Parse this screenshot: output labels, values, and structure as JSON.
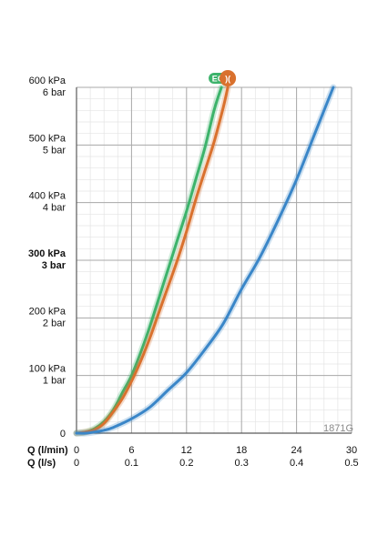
{
  "chart_data": {
    "type": "line",
    "xlabel": "Q (l/min)",
    "x2label": "Q (l/s)",
    "x_ticks": [
      "0",
      "6",
      "12",
      "18",
      "24",
      "30"
    ],
    "x2_ticks": [
      "0",
      "0.1",
      "0.2",
      "0.3",
      "0.4",
      "0.5"
    ],
    "xlim": [
      0,
      30
    ],
    "ylim": [
      0,
      600
    ],
    "y_ticks": [
      {
        "value": 0,
        "kpa": "",
        "bar": "0",
        "bold": false
      },
      {
        "value": 100,
        "kpa": "100 kPa",
        "bar": "1 bar",
        "bold": false
      },
      {
        "value": 200,
        "kpa": "200 kPa",
        "bar": "2 bar",
        "bold": false
      },
      {
        "value": 300,
        "kpa": "300 kPa",
        "bar": "3 bar",
        "bold": true
      },
      {
        "value": 400,
        "kpa": "400 kPa",
        "bar": "4 bar",
        "bold": false
      },
      {
        "value": 500,
        "kpa": "500 kPa",
        "bar": "5 bar",
        "bold": false
      },
      {
        "value": 600,
        "kpa": "600 kPa",
        "bar": "6 bar",
        "bold": false
      }
    ],
    "grid": true,
    "code_label": "1871G",
    "series": [
      {
        "color": "#3db36b",
        "badge": "EC",
        "x": [
          0,
          1,
          2,
          3,
          4,
          5,
          6,
          7,
          8,
          9,
          10,
          11,
          12,
          13,
          14,
          15,
          15.8
        ],
        "y": [
          0,
          2,
          8,
          20,
          40,
          70,
          100,
          140,
          185,
          235,
          285,
          335,
          385,
          440,
          495,
          560,
          600
        ]
      },
      {
        "color": "#d9712e",
        "badge": ")(",
        "x": [
          0,
          1,
          2,
          3,
          4,
          5,
          6,
          7,
          8,
          9,
          10,
          11,
          12,
          13,
          14,
          15,
          16,
          16.5
        ],
        "y": [
          0,
          2,
          6,
          17,
          37,
          60,
          90,
          125,
          165,
          210,
          255,
          300,
          350,
          405,
          455,
          505,
          565,
          600
        ]
      },
      {
        "color": "#3a86c8",
        "badge": "",
        "x": [
          0,
          1,
          2,
          3,
          4,
          6,
          8,
          10,
          12,
          14,
          16,
          18,
          20,
          22,
          24,
          26,
          28
        ],
        "y": [
          0,
          0,
          2,
          5,
          10,
          25,
          45,
          75,
          105,
          145,
          190,
          250,
          305,
          370,
          440,
          520,
          600
        ]
      }
    ]
  }
}
